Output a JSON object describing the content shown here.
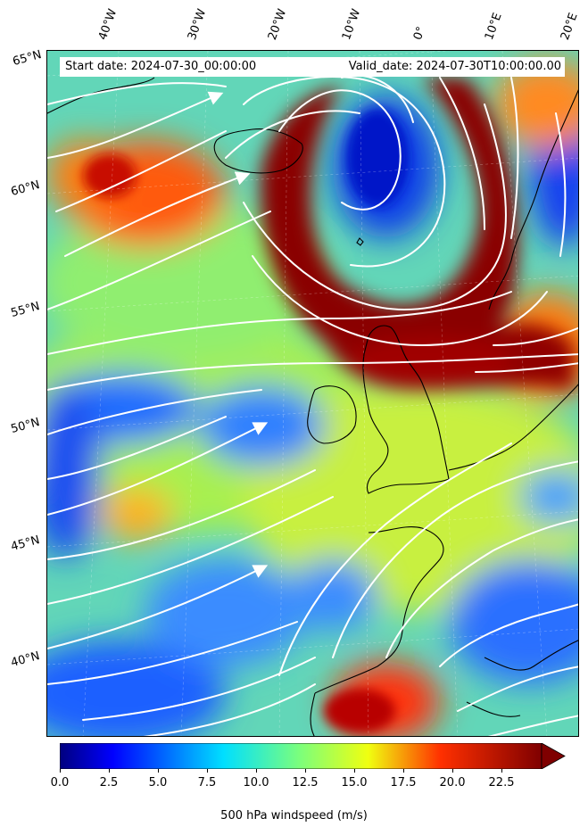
{
  "map": {
    "start_date": "Start date: 2024-07-30_00:00:00",
    "valid_date": "Valid_date: 2024-07-30T10:00:00.00",
    "longitude_labels": [
      "40°W",
      "30°W",
      "20°W",
      "10°W",
      "0°",
      "10°E",
      "20°E"
    ],
    "latitude_labels": [
      "65°N",
      "60°N",
      "55°N",
      "50°N",
      "45°N",
      "40°N"
    ],
    "field": "500 hPa windspeed",
    "streamline_color": "#ffffff",
    "coastline_color": "#000000",
    "colormap": "jet"
  },
  "colorbar": {
    "label": "500 hPa windspeed (m/s)",
    "min": 0.0,
    "max": 25.0,
    "extend": "max",
    "ticks": [
      "0.0",
      "2.5",
      "5.0",
      "7.5",
      "10.0",
      "12.5",
      "15.0",
      "17.5",
      "20.0",
      "22.5"
    ]
  }
}
